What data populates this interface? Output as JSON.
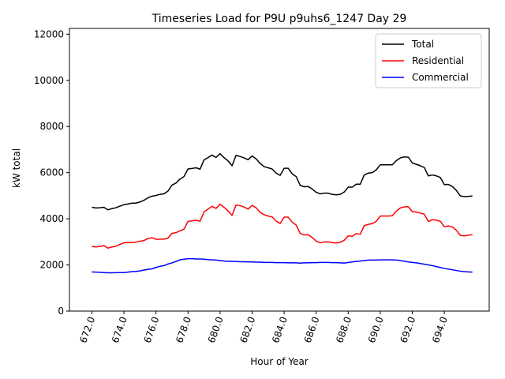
{
  "chart_data": {
    "type": "line",
    "title": "Timeseries Load for P9U p9uhs6_1247  Day 29",
    "xlabel": "Hour of Year",
    "ylabel": "kW total",
    "xlim": [
      670.6,
      696.8
    ],
    "ylim": [
      0,
      12250
    ],
    "xticks": [
      672,
      674,
      676,
      678,
      680,
      682,
      684,
      686,
      688,
      690,
      692,
      694
    ],
    "xtick_labels": [
      "672.0",
      "674.0",
      "676.0",
      "678.0",
      "680.0",
      "682.0",
      "684.0",
      "686.0",
      "688.0",
      "690.0",
      "692.0",
      "694.0"
    ],
    "yticks": [
      0,
      2000,
      4000,
      6000,
      8000,
      10000,
      12000
    ],
    "ytick_labels": [
      "0",
      "2000",
      "4000",
      "6000",
      "8000",
      "10000",
      "12000"
    ],
    "grid": false,
    "legend_position": "top-right",
    "x_start": 672.0,
    "x_step": 0.25,
    "series": [
      {
        "name": "Total",
        "color": "#000000",
        "values": [
          4500,
          4470,
          4480,
          4500,
          4390,
          4440,
          4480,
          4550,
          4610,
          4640,
          4680,
          4680,
          4730,
          4800,
          4910,
          4980,
          5010,
          5060,
          5080,
          5200,
          5460,
          5550,
          5720,
          5830,
          6160,
          6180,
          6210,
          6150,
          6550,
          6650,
          6760,
          6660,
          6820,
          6650,
          6510,
          6300,
          6750,
          6700,
          6640,
          6560,
          6720,
          6600,
          6400,
          6260,
          6210,
          6160,
          5980,
          5880,
          6190,
          6190,
          5950,
          5830,
          5450,
          5390,
          5400,
          5290,
          5150,
          5080,
          5110,
          5110,
          5060,
          5040,
          5060,
          5160,
          5370,
          5370,
          5500,
          5500,
          5900,
          5980,
          6000,
          6120,
          6340,
          6340,
          6340,
          6340,
          6520,
          6640,
          6680,
          6670,
          6420,
          6360,
          6300,
          6220,
          5860,
          5900,
          5860,
          5790,
          5480,
          5490,
          5400,
          5230,
          4990,
          4960,
          4970,
          4990
        ]
      },
      {
        "name": "Residential",
        "color": "#ff0000",
        "values": [
          2800,
          2780,
          2800,
          2840,
          2730,
          2780,
          2810,
          2890,
          2960,
          2970,
          2970,
          2990,
          3030,
          3060,
          3140,
          3180,
          3110,
          3120,
          3120,
          3160,
          3370,
          3400,
          3480,
          3550,
          3890,
          3910,
          3940,
          3890,
          4300,
          4420,
          4540,
          4450,
          4630,
          4500,
          4340,
          4150,
          4600,
          4570,
          4510,
          4420,
          4580,
          4480,
          4280,
          4180,
          4120,
          4080,
          3900,
          3800,
          4070,
          4070,
          3860,
          3730,
          3370,
          3300,
          3310,
          3190,
          3030,
          2960,
          3000,
          3000,
          2970,
          2950,
          2980,
          3070,
          3260,
          3240,
          3360,
          3330,
          3700,
          3760,
          3790,
          3890,
          4120,
          4120,
          4120,
          4130,
          4330,
          4470,
          4520,
          4520,
          4310,
          4290,
          4250,
          4200,
          3880,
          3960,
          3940,
          3890,
          3650,
          3690,
          3650,
          3500,
          3280,
          3260,
          3290,
          3310
        ]
      },
      {
        "name": "Commercial",
        "color": "#0000ff",
        "values": [
          1700,
          1690,
          1680,
          1670,
          1660,
          1660,
          1670,
          1670,
          1670,
          1690,
          1710,
          1720,
          1740,
          1780,
          1810,
          1830,
          1890,
          1940,
          1970,
          2040,
          2090,
          2150,
          2220,
          2250,
          2270,
          2270,
          2260,
          2260,
          2250,
          2230,
          2220,
          2210,
          2190,
          2170,
          2160,
          2150,
          2150,
          2140,
          2140,
          2130,
          2130,
          2120,
          2120,
          2110,
          2110,
          2110,
          2100,
          2100,
          2100,
          2090,
          2090,
          2090,
          2080,
          2090,
          2090,
          2100,
          2100,
          2110,
          2110,
          2110,
          2100,
          2100,
          2090,
          2080,
          2110,
          2130,
          2150,
          2170,
          2190,
          2210,
          2210,
          2210,
          2220,
          2220,
          2220,
          2220,
          2210,
          2190,
          2160,
          2130,
          2110,
          2090,
          2060,
          2030,
          2000,
          1970,
          1930,
          1890,
          1850,
          1820,
          1790,
          1760,
          1730,
          1710,
          1700,
          1690
        ]
      }
    ]
  }
}
